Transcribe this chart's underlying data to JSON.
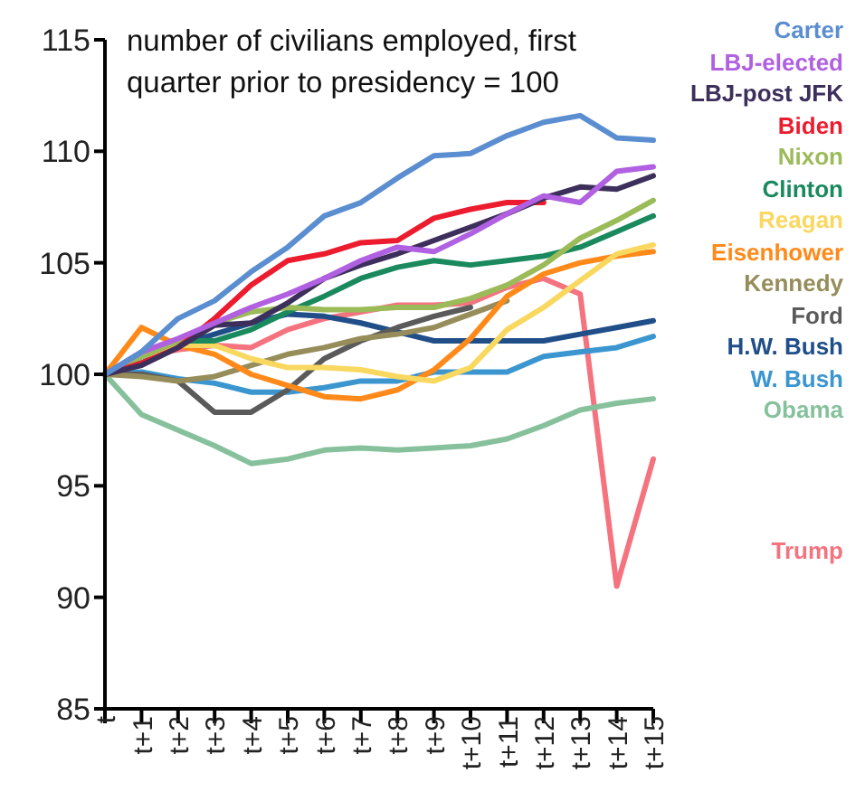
{
  "chart_data": {
    "type": "line",
    "title": "number of civilians employed, first quarter prior to presidency = 100",
    "categories": [
      "t",
      "t+1",
      "t+2",
      "t+3",
      "t+4",
      "t+5",
      "t+6",
      "t+7",
      "t+8",
      "t+9",
      "t+10",
      "t+11",
      "t+12",
      "t+13",
      "t+14",
      "t+15"
    ],
    "series": [
      {
        "name": "Carter",
        "color": "#5b8ed0",
        "values": [
          100,
          101,
          102.5,
          103.3,
          104.6,
          105.7,
          107.1,
          107.7,
          108.8,
          109.8,
          109.9,
          110.7,
          111.3,
          111.6,
          110.6,
          110.5
        ]
      },
      {
        "name": "LBJ-elected",
        "color": "#b060e0",
        "values": [
          100,
          101,
          101.6,
          102.3,
          103,
          103.6,
          104.3,
          105.1,
          105.7,
          105.5,
          106.3,
          107.2,
          108,
          107.7,
          109.1,
          109.3
        ]
      },
      {
        "name": "LBJ-post JFK",
        "color": "#3d2f5b",
        "values": [
          100,
          100.4,
          101.2,
          102.2,
          102.3,
          103.2,
          104.3,
          104.9,
          105.4,
          106,
          106.6,
          107.2,
          107.9,
          108.4,
          108.3,
          108.9
        ]
      },
      {
        "name": "Biden",
        "color": "#ec1c2e",
        "values": [
          100,
          100.5,
          101.2,
          102.5,
          104,
          105.1,
          105.4,
          105.9,
          106,
          107,
          107.4,
          107.7,
          107.7,
          null,
          null,
          null
        ]
      },
      {
        "name": "Nixon",
        "color": "#9bbb59",
        "values": [
          100,
          100.8,
          101.5,
          102.3,
          102.8,
          103,
          102.9,
          102.9,
          103,
          103,
          103.4,
          104,
          104.9,
          106.1,
          106.9,
          107.8
        ]
      },
      {
        "name": "Clinton",
        "color": "#1a8a5e",
        "values": [
          100,
          100.8,
          101.5,
          101.5,
          102,
          102.8,
          103.5,
          104.3,
          104.8,
          105.1,
          104.9,
          105.1,
          105.3,
          105.7,
          106.4,
          107.1
        ]
      },
      {
        "name": "Reagan",
        "color": "#f9d860",
        "values": [
          100,
          100.8,
          101.3,
          101.3,
          100.7,
          100.3,
          100.3,
          100.2,
          99.9,
          99.7,
          100.3,
          102,
          103,
          104.2,
          105.4,
          105.8
        ]
      },
      {
        "name": "Eisenhower",
        "color": "#ff8a1a",
        "values": [
          100,
          102.1,
          101.3,
          100.9,
          100,
          99.5,
          99,
          98.9,
          99.3,
          100.2,
          101.6,
          103.5,
          104.5,
          105,
          105.3,
          105.5
        ]
      },
      {
        "name": "Kennedy",
        "color": "#968d5a",
        "values": [
          100,
          99.9,
          99.7,
          99.9,
          100.4,
          100.9,
          101.2,
          101.6,
          101.8,
          102.1,
          102.7,
          103.3,
          null,
          null,
          null,
          null
        ]
      },
      {
        "name": "Ford",
        "color": "#5a5a5a",
        "values": [
          100,
          100,
          99.7,
          98.3,
          98.3,
          99.3,
          100.7,
          101.5,
          102.1,
          102.6,
          103,
          null,
          null,
          null,
          null,
          null
        ]
      },
      {
        "name": "H.W. Bush",
        "color": "#1f4e89",
        "values": [
          100,
          100.5,
          101.3,
          101.8,
          102.3,
          102.7,
          102.6,
          102.3,
          101.9,
          101.5,
          101.5,
          101.5,
          101.5,
          101.8,
          102.1,
          102.4
        ]
      },
      {
        "name": "W. Bush",
        "color": "#3b96d0",
        "values": [
          100,
          100.1,
          99.8,
          99.6,
          99.2,
          99.2,
          99.4,
          99.7,
          99.7,
          100.1,
          100.1,
          100.1,
          100.8,
          101,
          101.2,
          101.7
        ]
      },
      {
        "name": "Obama",
        "color": "#86c19c",
        "values": [
          100,
          98.2,
          97.5,
          96.8,
          96,
          96.2,
          96.6,
          96.7,
          96.6,
          96.7,
          96.8,
          97.1,
          97.7,
          98.4,
          98.7,
          98.9
        ]
      },
      {
        "name": "Trump",
        "color": "#f4737f",
        "values": [
          100,
          100.8,
          101.1,
          101.3,
          101.2,
          102,
          102.5,
          102.8,
          103.1,
          103.1,
          103.2,
          103.9,
          104.3,
          103.6,
          90.5,
          96.2
        ]
      }
    ],
    "ylim": [
      85,
      115
    ],
    "yticks": [
      85,
      90,
      95,
      100,
      105,
      110,
      115
    ],
    "grid": false,
    "legend": "right",
    "marker": "none",
    "line_style": "solid"
  }
}
